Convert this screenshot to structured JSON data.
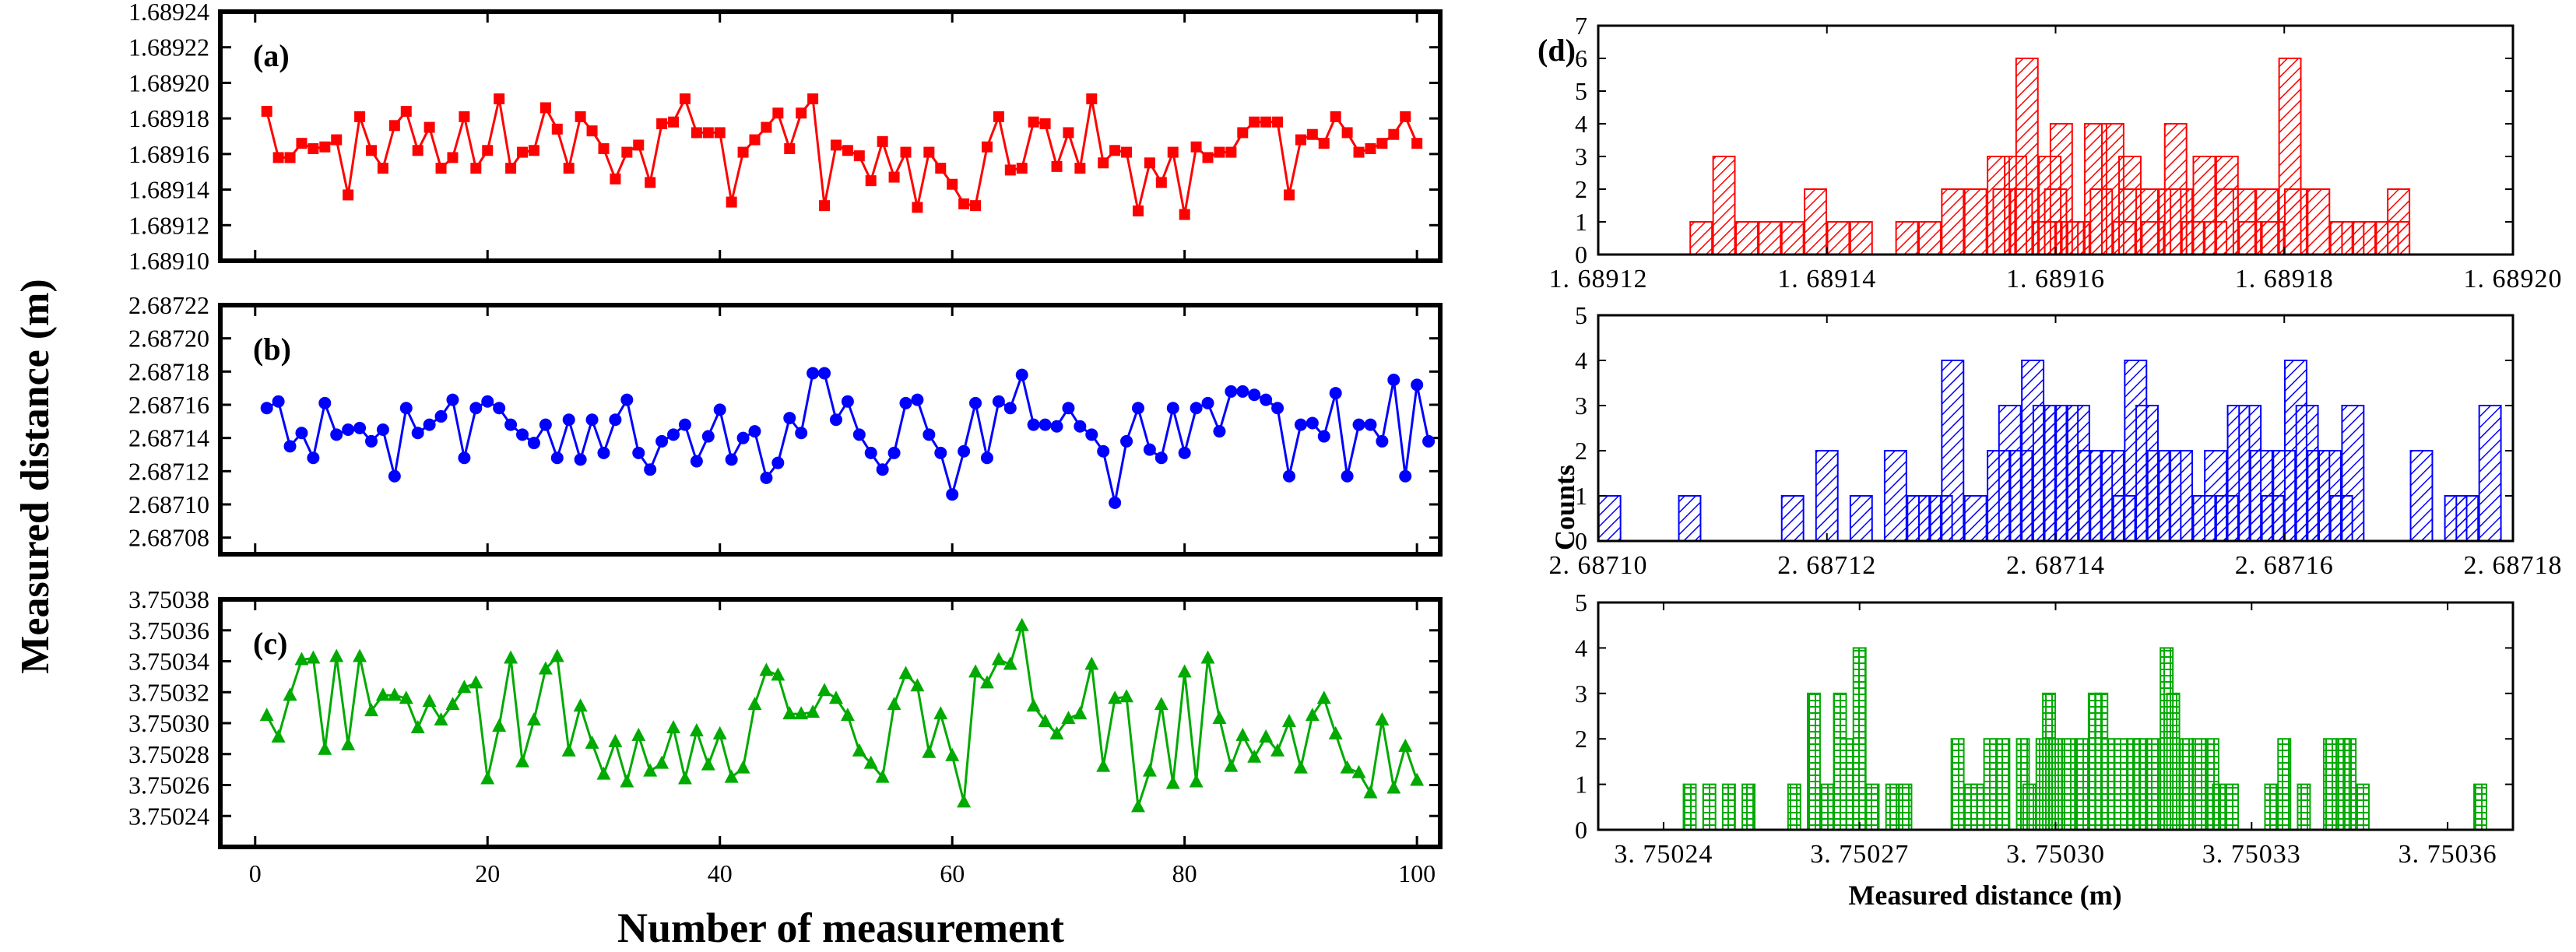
{
  "chart_data": [
    {
      "id": "a",
      "type": "line",
      "panel_label": "(a)",
      "color": "#ff0000",
      "marker": "square",
      "xlim": [
        -3,
        102
      ],
      "ylim": [
        1.6891,
        1.68924
      ],
      "yticks": [
        "1.68910",
        "1.68912",
        "1.68914",
        "1.68916",
        "1.68918",
        "1.68920",
        "1.68922",
        "1.68924"
      ],
      "x_start": 1,
      "values": [
        1.689184,
        1.689158,
        1.689158,
        1.689166,
        1.689163,
        1.689164,
        1.689168,
        1.689137,
        1.689181,
        1.689162,
        1.689152,
        1.689176,
        1.689184,
        1.689162,
        1.689175,
        1.689152,
        1.689158,
        1.689181,
        1.689152,
        1.689162,
        1.689191,
        1.689152,
        1.689161,
        1.689162,
        1.689186,
        1.689174,
        1.689152,
        1.689181,
        1.689173,
        1.689163,
        1.689146,
        1.689161,
        1.689165,
        1.689144,
        1.689177,
        1.689178,
        1.689191,
        1.689172,
        1.689172,
        1.689172,
        1.689133,
        1.689161,
        1.689168,
        1.689175,
        1.689183,
        1.689163,
        1.689183,
        1.689191,
        1.689131,
        1.689165,
        1.689162,
        1.689159,
        1.689145,
        1.689167,
        1.689147,
        1.689161,
        1.68913,
        1.689161,
        1.689152,
        1.689143,
        1.689132,
        1.689131,
        1.689164,
        1.689181,
        1.689151,
        1.689152,
        1.689178,
        1.689177,
        1.689153,
        1.689172,
        1.689152,
        1.689191,
        1.689155,
        1.689162,
        1.689161,
        1.689128,
        1.689155,
        1.689144,
        1.689161,
        1.689126,
        1.689164,
        1.689158,
        1.689161,
        1.689161,
        1.689172,
        1.689178,
        1.689178,
        1.689178,
        1.689137,
        1.689168,
        1.689171,
        1.689166,
        1.689181,
        1.689172,
        1.689161,
        1.689163,
        1.689166,
        1.689171,
        1.689181,
        1.689166
      ]
    },
    {
      "id": "b",
      "type": "line",
      "panel_label": "(b)",
      "color": "#0000ff",
      "marker": "circle",
      "xlim": [
        -3,
        102
      ],
      "ylim": [
        2.68707,
        2.68722
      ],
      "yticks": [
        "2.68708",
        "2.68710",
        "2.68712",
        "2.68714",
        "2.68716",
        "2.68718",
        "2.68720",
        "2.68722"
      ],
      "x_start": 1,
      "values": [
        2.687158,
        2.687162,
        2.687135,
        2.687143,
        2.687128,
        2.687161,
        2.687142,
        2.687145,
        2.687146,
        2.687138,
        2.687145,
        2.687117,
        2.687158,
        2.687143,
        2.687148,
        2.687153,
        2.687163,
        2.687128,
        2.687158,
        2.687162,
        2.687158,
        2.687148,
        2.687142,
        2.687137,
        2.687148,
        2.687128,
        2.687151,
        2.687127,
        2.687151,
        2.687131,
        2.687151,
        2.687163,
        2.687131,
        2.687121,
        2.687138,
        2.687142,
        2.687148,
        2.687126,
        2.687141,
        2.687157,
        2.687127,
        2.68714,
        2.687144,
        2.687116,
        2.687125,
        2.687152,
        2.687143,
        2.687179,
        2.687179,
        2.687151,
        2.687162,
        2.687142,
        2.687131,
        2.687121,
        2.687131,
        2.687161,
        2.687163,
        2.687142,
        2.687131,
        2.687106,
        2.687132,
        2.687161,
        2.687128,
        2.687162,
        2.687158,
        2.687178,
        2.687148,
        2.687148,
        2.687147,
        2.687158,
        2.687147,
        2.687142,
        2.687132,
        2.687101,
        2.687138,
        2.687158,
        2.687133,
        2.687128,
        2.687158,
        2.687131,
        2.687158,
        2.687161,
        2.687144,
        2.687168,
        2.687168,
        2.687166,
        2.687163,
        2.687158,
        2.687117,
        2.687148,
        2.687149,
        2.687141,
        2.687167,
        2.687117,
        2.687148,
        2.687148,
        2.687138,
        2.687175,
        2.687117,
        2.687172,
        2.687138
      ]
    },
    {
      "id": "c",
      "type": "line",
      "panel_label": "(c)",
      "color": "#00aa00",
      "marker": "triangle",
      "xlim": [
        -3,
        102
      ],
      "ylim": [
        3.75022,
        3.75038
      ],
      "yticks": [
        "3.75024",
        "3.75026",
        "3.75028",
        "3.75030",
        "3.75032",
        "3.75034",
        "3.75036",
        "3.75038"
      ],
      "x_start": 1,
      "values": [
        3.750305,
        3.750291,
        3.750318,
        3.750341,
        3.750342,
        3.750283,
        3.750343,
        3.750286,
        3.750343,
        3.750308,
        3.750318,
        3.750318,
        3.750316,
        3.750297,
        3.750314,
        3.750302,
        3.750312,
        3.750323,
        3.750326,
        3.750264,
        3.750298,
        3.750342,
        3.750275,
        3.750302,
        3.750335,
        3.750343,
        3.750282,
        3.750311,
        3.750287,
        3.750267,
        3.750288,
        3.750262,
        3.750292,
        3.750269,
        3.750274,
        3.750297,
        3.750264,
        3.750295,
        3.750273,
        3.750293,
        3.750265,
        3.750271,
        3.750312,
        3.750334,
        3.750331,
        3.750306,
        3.750306,
        3.750307,
        3.750321,
        3.750316,
        3.750305,
        3.750282,
        3.750274,
        3.750265,
        3.750312,
        3.750332,
        3.750324,
        3.750281,
        3.750306,
        3.750279,
        3.750249,
        3.750333,
        3.750326,
        3.750341,
        3.750338,
        3.750363,
        3.750311,
        3.750301,
        3.750293,
        3.750303,
        3.750306,
        3.750338,
        3.750272,
        3.750316,
        3.750317,
        3.750246,
        3.750269,
        3.750312,
        3.750261,
        3.750333,
        3.750262,
        3.750342,
        3.750303,
        3.750272,
        3.750292,
        3.750278,
        3.750291,
        3.750282,
        3.750301,
        3.750271,
        3.750305,
        3.750316,
        3.750293,
        3.750271,
        3.750268,
        3.750255,
        3.750302,
        3.750258,
        3.750285,
        3.750263
      ]
    },
    {
      "id": "d1",
      "type": "bar",
      "panel_label": "(d)",
      "color": "#ff0000",
      "hatch": "diagonal",
      "xlim": [
        1.68912,
        1.6892
      ],
      "ylim": [
        0,
        7
      ],
      "xticks": [
        "1. 68912",
        "1. 68914",
        "1. 68916",
        "1. 68918",
        "1. 68920"
      ],
      "xtick_values": [
        1.68912,
        1.68914,
        1.68916,
        1.68918,
        1.6892
      ],
      "yticks": [
        "0",
        "1",
        "2",
        "3",
        "4",
        "5",
        "6",
        "7"
      ],
      "bin_width": 1.9e-06,
      "bins": [
        [
          1.689129,
          1
        ],
        [
          1.689131,
          3
        ],
        [
          1.689133,
          1
        ],
        [
          1.689135,
          1
        ],
        [
          1.689137,
          1
        ],
        [
          1.689139,
          2
        ],
        [
          1.689141,
          1
        ],
        [
          1.689143,
          1
        ],
        [
          1.689147,
          1
        ],
        [
          1.689149,
          1
        ],
        [
          1.689151,
          2
        ],
        [
          1.689153,
          2
        ],
        [
          1.689155,
          3
        ],
        [
          1.689157,
          2
        ],
        [
          1.689159,
          1
        ],
        [
          1.68916,
          2
        ],
        [
          1.689162,
          1
        ],
        [
          1.689164,
          2
        ],
        [
          1.689166,
          1
        ],
        [
          1.689168,
          2
        ],
        [
          1.68917,
          2
        ],
        [
          1.689172,
          1
        ],
        [
          1.689174,
          1
        ],
        [
          1.689175,
          2
        ],
        [
          1.689177,
          1
        ],
        [
          1.689179,
          1
        ],
        [
          1.689181,
          2
        ],
        [
          1.689183,
          2
        ],
        [
          1.689185,
          1
        ],
        [
          1.689187,
          1
        ],
        [
          1.689189,
          1
        ],
        [
          1.68919,
          2
        ],
        [
          1.6891565,
          3
        ],
        [
          1.6891575,
          6
        ],
        [
          1.6891605,
          4
        ],
        [
          1.689161,
          1
        ],
        [
          1.6891635,
          4
        ],
        [
          1.689165,
          4
        ],
        [
          1.6891665,
          3
        ],
        [
          1.6891705,
          4
        ],
        [
          1.689173,
          3
        ],
        [
          1.689175,
          3
        ],
        [
          1.6891805,
          6
        ],
        [
          1.6891555,
          2
        ],
        [
          1.6891595,
          3
        ],
        [
          1.6891615,
          1
        ],
        [
          1.6891665,
          2
        ],
        [
          1.6891685,
          1
        ],
        [
          1.689171,
          2
        ],
        [
          1.6891765,
          2
        ],
        [
          1.6891785,
          2
        ],
        [
          1.689186,
          1
        ],
        [
          1.68919,
          1
        ]
      ]
    },
    {
      "id": "d2",
      "type": "bar",
      "color": "#0000ff",
      "hatch": "diagonal",
      "xlim": [
        2.6871,
        2.68718
      ],
      "ylim": [
        0,
        5
      ],
      "xticks": [
        "2. 68710",
        "2. 68712",
        "2. 68714",
        "2. 68716",
        "2. 68718"
      ],
      "xtick_values": [
        2.6871,
        2.68712,
        2.68714,
        2.68716,
        2.68718
      ],
      "yticks": [
        "0",
        "1",
        "2",
        "3",
        "4",
        "5"
      ],
      "ylabel": "Counts",
      "bin_width": 1.9e-06,
      "bins": [
        [
          2.687101,
          1
        ],
        [
          2.687108,
          1
        ],
        [
          2.687117,
          1
        ],
        [
          2.68712,
          2
        ],
        [
          2.687123,
          1
        ],
        [
          2.687126,
          2
        ],
        [
          2.687128,
          1
        ],
        [
          2.687129,
          1
        ],
        [
          2.68713,
          1
        ],
        [
          2.687131,
          4
        ],
        [
          2.687133,
          1
        ],
        [
          2.687135,
          2
        ],
        [
          2.687136,
          3
        ],
        [
          2.687137,
          2
        ],
        [
          2.687138,
          4
        ],
        [
          2.687139,
          3
        ],
        [
          2.68714,
          3
        ],
        [
          2.687141,
          3
        ],
        [
          2.687142,
          3
        ],
        [
          2.687143,
          2
        ],
        [
          2.687144,
          2
        ],
        [
          2.687145,
          2
        ],
        [
          2.687146,
          1
        ],
        [
          2.687147,
          4
        ],
        [
          2.687148,
          3
        ],
        [
          2.687149,
          2
        ],
        [
          2.68715,
          2
        ],
        [
          2.687151,
          2
        ],
        [
          2.687153,
          1
        ],
        [
          2.687154,
          2
        ],
        [
          2.687155,
          1
        ],
        [
          2.687156,
          3
        ],
        [
          2.687157,
          3
        ],
        [
          2.687158,
          2
        ],
        [
          2.687159,
          1
        ],
        [
          2.68716,
          2
        ],
        [
          2.687161,
          4
        ],
        [
          2.687162,
          3
        ],
        [
          2.687163,
          2
        ],
        [
          2.687164,
          2
        ],
        [
          2.687165,
          1
        ],
        [
          2.687166,
          3
        ],
        [
          2.687172,
          2
        ],
        [
          2.687175,
          1
        ],
        [
          2.687176,
          1
        ],
        [
          2.687178,
          3
        ]
      ]
    },
    {
      "id": "d3",
      "type": "bar",
      "color": "#00aa00",
      "hatch": "grid",
      "xlim": [
        3.75023,
        3.75037
      ],
      "ylim": [
        0,
        5
      ],
      "xticks": [
        "3. 75024",
        "3. 75027",
        "3. 75030",
        "3. 75033",
        "3. 75036"
      ],
      "xtick_values": [
        3.75024,
        3.75027,
        3.7503,
        3.75033,
        3.75036
      ],
      "yticks": [
        "0",
        "1",
        "2",
        "3",
        "4",
        "5"
      ],
      "xlabel": "Measured distance (m)",
      "bin_width": 1.9e-06,
      "bins": [
        [
          3.750244,
          1
        ],
        [
          3.750247,
          1
        ],
        [
          3.75025,
          1
        ],
        [
          3.750253,
          1
        ],
        [
          3.75026,
          1
        ],
        [
          3.750263,
          3
        ],
        [
          3.750265,
          1
        ],
        [
          3.750267,
          3
        ],
        [
          3.750268,
          2
        ],
        [
          3.75027,
          4
        ],
        [
          3.750272,
          1
        ],
        [
          3.750275,
          1
        ],
        [
          3.750277,
          1
        ],
        [
          3.750285,
          2
        ],
        [
          3.750287,
          1
        ],
        [
          3.750288,
          1
        ],
        [
          3.75029,
          2
        ],
        [
          3.750292,
          2
        ],
        [
          3.750295,
          2
        ],
        [
          3.750296,
          1
        ],
        [
          3.750298,
          2
        ],
        [
          3.750299,
          3
        ],
        [
          3.7503,
          2
        ],
        [
          3.750302,
          2
        ],
        [
          3.750304,
          2
        ],
        [
          3.750306,
          3
        ],
        [
          3.750307,
          3
        ],
        [
          3.750308,
          2
        ],
        [
          3.75031,
          2
        ],
        [
          3.750312,
          2
        ],
        [
          3.750313,
          2
        ],
        [
          3.750315,
          2
        ],
        [
          3.750317,
          4
        ],
        [
          3.750318,
          3
        ],
        [
          3.75032,
          2
        ],
        [
          3.750322,
          2
        ],
        [
          3.750324,
          2
        ],
        [
          3.750325,
          1
        ],
        [
          3.750327,
          1
        ],
        [
          3.750333,
          1
        ],
        [
          3.750335,
          2
        ],
        [
          3.750338,
          1
        ],
        [
          3.750342,
          2
        ],
        [
          3.750344,
          2
        ],
        [
          3.750345,
          2
        ],
        [
          3.750347,
          1
        ],
        [
          3.750365,
          1
        ]
      ]
    }
  ],
  "labels": {
    "left_ylabel": "Measured distance (m)",
    "left_xlabel": "Number of measurement",
    "left_xticks": [
      "0",
      "20",
      "40",
      "60",
      "80",
      "100"
    ],
    "hist_ylabel": "Counts",
    "hist_xlabel": "Measured distance (m)"
  }
}
